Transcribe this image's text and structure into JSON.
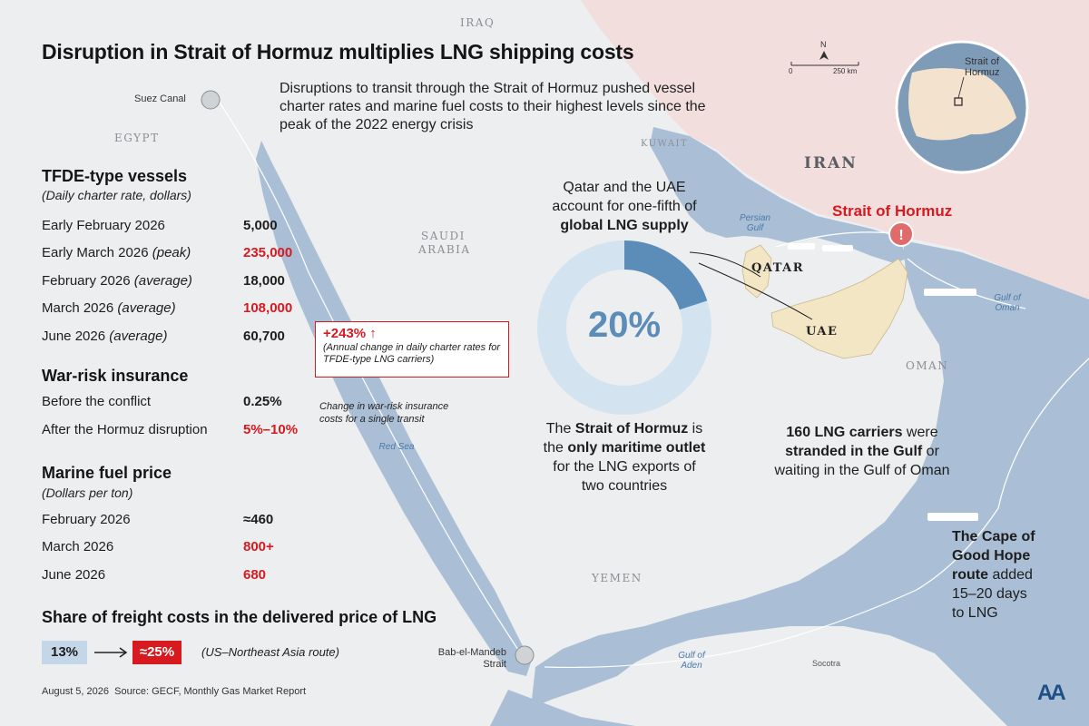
{
  "title": "Disruption in Strait of Hormuz multiplies LNG shipping costs",
  "subtitle": "Disruptions to transit through the Strait of Hormuz pushed vessel charter rates and marine fuel costs to their highest levels since the peak of the 2022 energy crisis",
  "map_labels": {
    "iraq": "IRAQ",
    "egypt": "EGYPT",
    "kuwait": "KUWAIT",
    "iran": "IRAN",
    "saudi_line1": "SAUDI",
    "saudi_line2": "ARABIA",
    "qatar": "QATAR",
    "uae": "UAE",
    "oman": "OMAN",
    "yemen": "YEMEN",
    "socotra": "Socotra",
    "persian_gulf_1": "Persian",
    "persian_gulf_2": "Gulf",
    "gulf_of_oman_1": "Gulf of",
    "gulf_of_oman_2": "Oman",
    "red_sea": "Red Sea",
    "gulf_of_aden_1": "Gulf of",
    "gulf_of_aden_2": "Aden",
    "suez": "Suez Canal",
    "bab_1": "Bab-el-Mandeb",
    "bab_2": "Strait",
    "scale_zero": "0",
    "scale_km": "250 km",
    "north": "N",
    "globe_label_1": "Strait of",
    "globe_label_2": "Hormuz"
  },
  "tfde": {
    "heading": "TFDE-type vessels",
    "sub": "(Daily charter rate, dollars)",
    "rows": [
      {
        "label": "Early February 2026",
        "note": "",
        "value": "5,000",
        "red": false
      },
      {
        "label": "Early March 2026",
        "note": "(peak)",
        "value": "235,000",
        "red": true
      },
      {
        "label": "February 2026",
        "note": "(average)",
        "value": "18,000",
        "red": false
      },
      {
        "label": "March 2026",
        "note": "(average)",
        "value": "108,000",
        "red": true
      },
      {
        "label": "June 2026",
        "note": "(average)",
        "value": "60,700",
        "red": false
      }
    ],
    "callout_value": "+243%",
    "callout_arrow": "↑",
    "callout_note": "(Annual change in daily charter rates for TFDE-type LNG carriers)"
  },
  "insurance": {
    "heading": "War-risk insurance",
    "rows": [
      {
        "label": "Before the conflict",
        "value": "0.25%",
        "red": false
      },
      {
        "label": "After the Hormuz disruption",
        "value": "5%–10%",
        "red": true
      }
    ],
    "note": "Change in war-risk insurance costs for a single transit"
  },
  "fuel": {
    "heading": "Marine fuel price",
    "sub": "(Dollars per ton)",
    "rows": [
      {
        "label": "February 2026",
        "value": "≈460",
        "red": false
      },
      {
        "label": "March 2026",
        "value": "800+",
        "red": true
      },
      {
        "label": "June 2026",
        "value": "680",
        "red": true
      }
    ]
  },
  "freight": {
    "heading": "Share of freight costs in the delivered price of LNG",
    "from": "13%",
    "to": "≈25%",
    "route": "(US–Northeast Asia route)"
  },
  "donut": {
    "percent": "20%",
    "share": 0.2,
    "top_line1": "Qatar and the UAE",
    "top_line2": "account for one-fifth of",
    "top_bold": "global LNG supply",
    "bottom_pre": "The ",
    "bottom_bold1": "Strait of Hormuz",
    "bottom_mid": " is",
    "bottom_line2_pre": "the ",
    "bottom_bold2": "only maritime outlet",
    "bottom_line3": "for the LNG exports of",
    "bottom_line4": "two countries"
  },
  "hormuz_label": "Strait of Hormuz",
  "carriers": {
    "bold1": "160 LNG carriers",
    "rest1": " were",
    "bold2": "stranded in the Gulf",
    "rest2": " or",
    "line3": "waiting in the Gulf of Oman"
  },
  "cape": {
    "bold1": "The Cape of",
    "bold2": "Good Hope",
    "bold3": "route",
    "rest3": " added",
    "line4": "15–20 days",
    "line5": "to LNG"
  },
  "footer": {
    "date": "August 5, 2026",
    "source": "Source: GECF, Monthly Gas Market Report"
  },
  "logo_text": "AA",
  "colors": {
    "accent_red": "#d71920",
    "donut_fill": "#5b8db8",
    "donut_track": "#d3e4f0",
    "sea": "#aabfd6",
    "iran_land": "#f1dedd",
    "land": "#eceef0",
    "highlight_land": "#f3e6c4"
  }
}
